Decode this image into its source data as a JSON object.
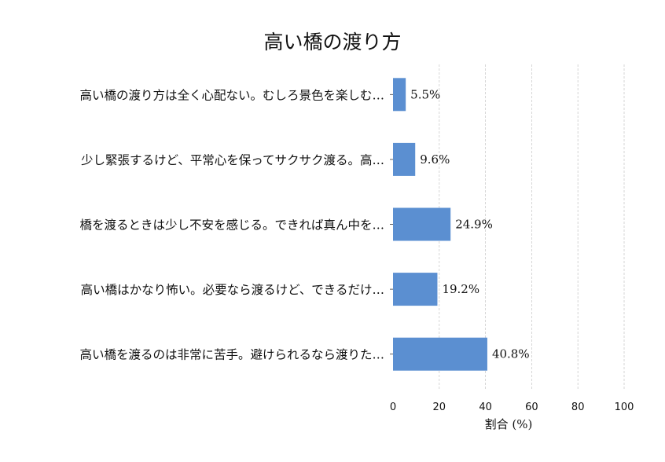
{
  "chart_data": {
    "type": "bar",
    "orientation": "horizontal",
    "title": "高い橋の渡り方",
    "xlabel": "割合 (%)",
    "ylabel": "",
    "xlim": [
      0,
      100
    ],
    "xticks": [
      0,
      20,
      40,
      60,
      80,
      100
    ],
    "grid": "x-dashed",
    "categories": [
      "高い橋の渡り方は全く心配ない。むしろ景色を楽しむ…",
      "少し緊張するけど、平常心を保ってサクサク渡る。高…",
      "橋を渡るときは少し不安を感じる。できれば真ん中を…",
      "高い橋はかなり怖い。必要なら渡るけど、できるだけ…",
      "高い橋を渡るのは非常に苦手。避けられるなら渡りた…"
    ],
    "values": [
      5.5,
      9.6,
      24.9,
      19.2,
      40.8
    ],
    "data_labels": [
      "5.5%",
      "9.6%",
      "24.9%",
      "19.2%",
      "40.8%"
    ],
    "bar_color": "#5b8fd1"
  }
}
